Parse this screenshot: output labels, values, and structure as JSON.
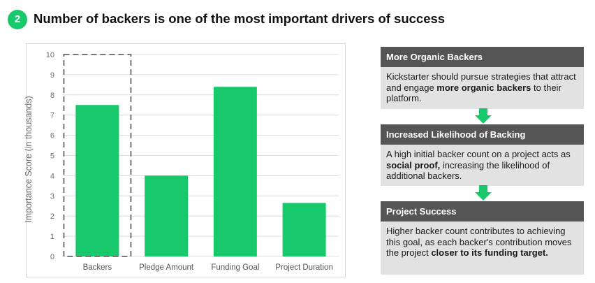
{
  "header": {
    "badge": "2",
    "title": "Number of backers is one of the most important drivers of success"
  },
  "colors": {
    "accent": "#17c96b",
    "panel_header": "#555555",
    "panel_body": "#e2e2e2",
    "highlight_border": "#777777"
  },
  "chart_data": {
    "type": "bar",
    "categories": [
      "Backers",
      "Pledge Amount",
      "Funding Goal",
      "Project Duration"
    ],
    "values": [
      7.5,
      4.0,
      8.4,
      2.65
    ],
    "xlabel": "",
    "ylabel": "Importance Score (in thousands)",
    "ylim": [
      0,
      10
    ],
    "yticks": [
      0,
      1,
      2,
      3,
      4,
      5,
      6,
      7,
      8,
      9,
      10
    ],
    "grid": true,
    "highlight_category": "Backers"
  },
  "panels": [
    {
      "title": "More Organic Backers",
      "body": [
        {
          "text": "Kickstarter should pursue strategies that attract and engage ",
          "bold": false
        },
        {
          "text": "more organic backers",
          "bold": true
        },
        {
          "text": " to their platform.",
          "bold": false
        }
      ]
    },
    {
      "title": "Increased Likelihood of Backing",
      "body": [
        {
          "text": "A high initial backer count on a project acts as ",
          "bold": false
        },
        {
          "text": "social proof,",
          "bold": true
        },
        {
          "text": " increasing the likelihood of additional backers.",
          "bold": false
        }
      ]
    },
    {
      "title": "Project Success",
      "body": [
        {
          "text": "Higher backer count contributes to achieving this goal, as each backer's contribution moves the project ",
          "bold": false
        },
        {
          "text": "closer to its funding target.",
          "bold": true
        }
      ]
    }
  ]
}
